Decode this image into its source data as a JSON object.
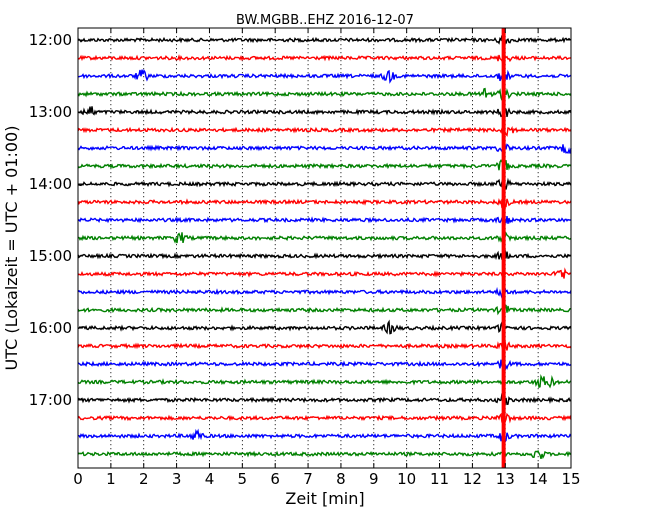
{
  "chart_data": {
    "type": "line",
    "title": "BW.MGBB..EHZ 2016-12-07",
    "xlabel": "Zeit  [min]",
    "ylabel": "UTC (Lokalzeit = UTC + 01:00)",
    "xlim": [
      0,
      15
    ],
    "x_ticks": [
      "0",
      "1",
      "2",
      "3",
      "4",
      "5",
      "6",
      "7",
      "8",
      "9",
      "10",
      "11",
      "12",
      "13",
      "14",
      "15"
    ],
    "y_tick_labels": [
      "12:00",
      "13:00",
      "14:00",
      "15:00",
      "16:00",
      "17:00"
    ],
    "grid": "vertical dotted lines at each minute",
    "trace_colors": [
      "#000000",
      "#ff0000",
      "#0000ff",
      "#008000"
    ],
    "traces": [
      {
        "start": "12:00",
        "events": [
          12.95
        ]
      },
      {
        "start": "12:15",
        "events": [
          12.95
        ]
      },
      {
        "start": "12:30",
        "events": [
          1.95,
          9.45,
          12.95
        ]
      },
      {
        "start": "12:45",
        "events": [
          12.4,
          12.95
        ]
      },
      {
        "start": "13:00",
        "events": [
          0.35,
          12.95
        ]
      },
      {
        "start": "13:15",
        "events": [
          13.1
        ]
      },
      {
        "start": "13:30",
        "events": [
          12.95,
          14.9
        ]
      },
      {
        "start": "13:45",
        "events": [
          12.95
        ]
      },
      {
        "start": "14:00",
        "events": [
          12.95
        ]
      },
      {
        "start": "14:15",
        "events": [
          12.95
        ]
      },
      {
        "start": "14:30",
        "events": [
          12.95
        ]
      },
      {
        "start": "14:45",
        "events": [
          3.1,
          12.95
        ]
      },
      {
        "start": "15:00",
        "events": [
          12.95
        ]
      },
      {
        "start": "15:15",
        "events": [
          14.7
        ]
      },
      {
        "start": "15:30",
        "events": [
          12.95
        ]
      },
      {
        "start": "15:45",
        "events": [
          12.95
        ]
      },
      {
        "start": "16:00",
        "events": [
          9.5,
          12.95
        ]
      },
      {
        "start": "16:15",
        "events": [
          12.95
        ]
      },
      {
        "start": "16:30",
        "events": [
          12.95
        ]
      },
      {
        "start": "16:45",
        "events": [
          14.1,
          14.3
        ]
      },
      {
        "start": "17:00",
        "events": [
          12.95
        ]
      },
      {
        "start": "17:15",
        "events": [
          12.95
        ]
      },
      {
        "start": "17:30",
        "events": [
          3.6,
          12.95
        ]
      },
      {
        "start": "17:45",
        "events": [
          14.0
        ]
      }
    ],
    "marker": {
      "x": 12.95,
      "color": "#ff0000"
    }
  }
}
